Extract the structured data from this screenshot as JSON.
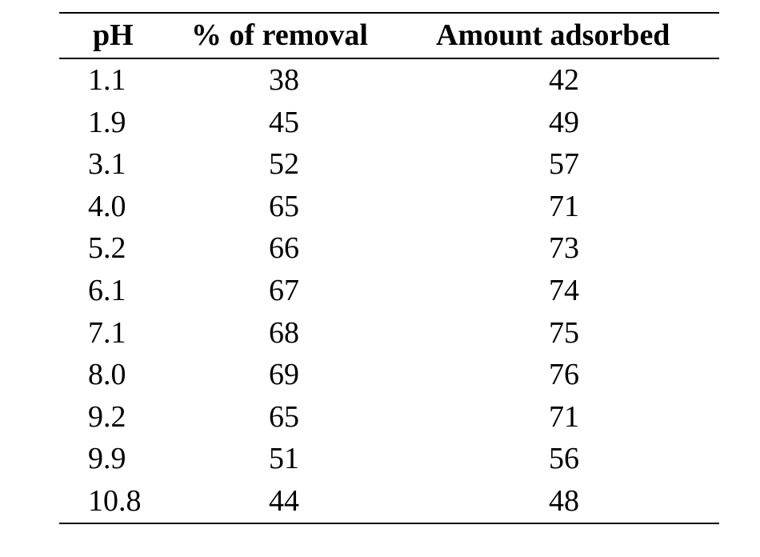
{
  "table": {
    "headers": [
      "pH",
      "% of removal",
      "Amount adsorbed"
    ],
    "rows": [
      [
        "1.1",
        "38",
        "42"
      ],
      [
        "1.9",
        "45",
        "49"
      ],
      [
        "3.1",
        "52",
        "57"
      ],
      [
        "4.0",
        "65",
        "71"
      ],
      [
        "5.2",
        "66",
        "73"
      ],
      [
        "6.1",
        "67",
        "74"
      ],
      [
        "7.1",
        "68",
        "75"
      ],
      [
        "8.0",
        "69",
        "76"
      ],
      [
        "9.2",
        "65",
        "71"
      ],
      [
        "9.9",
        "51",
        "56"
      ],
      [
        "10.8",
        "44",
        "48"
      ]
    ]
  }
}
